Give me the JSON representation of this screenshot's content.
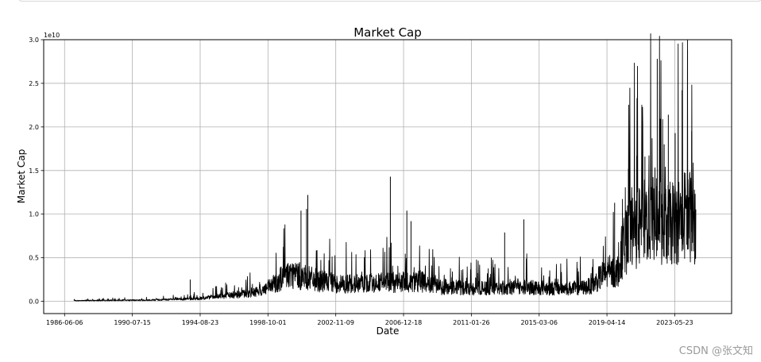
{
  "chart_data": {
    "type": "line",
    "title": "Market Cap",
    "xlabel": "Date",
    "ylabel": "Market Cap",
    "y_offset_text": "1e10",
    "y_scale_factor": 10000000000,
    "ylim": [
      -1400000000,
      30000000000
    ],
    "y_ticks": [
      {
        "value": 0,
        "label": "0.0"
      },
      {
        "value": 5000000000,
        "label": "0.5"
      },
      {
        "value": 10000000000,
        "label": "1.0"
      },
      {
        "value": 15000000000,
        "label": "1.5"
      },
      {
        "value": 20000000000,
        "label": "2.0"
      },
      {
        "value": 25000000000,
        "label": "2.5"
      },
      {
        "value": 30000000000,
        "label": "3.0"
      }
    ],
    "xlim": [
      "1985-03-01",
      "2026-11-01"
    ],
    "x_ticks": [
      "1986-06-06",
      "1990-07-15",
      "1994-08-23",
      "1998-10-01",
      "2002-11-09",
      "2006-12-18",
      "2011-01-26",
      "2015-03-06",
      "2019-04-14",
      "2023-05-23"
    ],
    "grid": true,
    "series": [
      {
        "color": "#000000",
        "points": [
          [
            "1987-01-01",
            80000000
          ],
          [
            "1988-01-01",
            100000000
          ],
          [
            "1989-01-01",
            110000000
          ],
          [
            "1990-01-01",
            130000000
          ],
          [
            "1991-01-01",
            140000000
          ],
          [
            "1992-01-01",
            180000000
          ],
          [
            "1993-01-01",
            220000000
          ],
          [
            "1994-01-01",
            280000000
          ],
          [
            "1995-01-01",
            400000000
          ],
          [
            "1995-10-01",
            550000000
          ],
          [
            "1996-06-01",
            700000000
          ],
          [
            "1997-01-01",
            800000000
          ],
          [
            "1997-10-01",
            1000000000
          ],
          [
            "1998-06-01",
            1300000000
          ],
          [
            "1999-01-01",
            1800000000
          ],
          [
            "1999-07-01",
            2600000000
          ],
          [
            "2000-01-01",
            3200000000
          ],
          [
            "2000-07-01",
            3000000000
          ],
          [
            "2001-01-01",
            2700000000
          ],
          [
            "2002-01-01",
            2300000000
          ],
          [
            "2003-01-01",
            2000000000
          ],
          [
            "2004-01-01",
            2000000000
          ],
          [
            "2005-01-01",
            2100000000
          ],
          [
            "2006-01-01",
            2200000000
          ],
          [
            "2007-01-01",
            2200000000
          ],
          [
            "2008-01-01",
            2300000000
          ],
          [
            "2009-01-01",
            1700000000
          ],
          [
            "2010-01-01",
            1600000000
          ],
          [
            "2011-01-01",
            1500000000
          ],
          [
            "2012-01-01",
            1500000000
          ],
          [
            "2013-01-01",
            1600000000
          ],
          [
            "2014-01-01",
            1700000000
          ],
          [
            "2015-01-01",
            1600000000
          ],
          [
            "2016-01-01",
            1500000000
          ],
          [
            "2017-01-01",
            1500000000
          ],
          [
            "2018-01-01",
            1600000000
          ],
          [
            "2018-07-01",
            2000000000
          ],
          [
            "2019-01-01",
            3000000000
          ],
          [
            "2019-07-01",
            3200000000
          ],
          [
            "2020-01-01",
            3500000000
          ],
          [
            "2020-04-01",
            6000000000
          ],
          [
            "2020-10-01",
            8000000000
          ],
          [
            "2021-04-01",
            8500000000
          ],
          [
            "2021-10-01",
            9500000000
          ],
          [
            "2022-04-01",
            10000000000
          ],
          [
            "2022-10-01",
            8500000000
          ],
          [
            "2023-04-01",
            9000000000
          ],
          [
            "2023-10-01",
            9500000000
          ],
          [
            "2024-04-01",
            10000000000
          ],
          [
            "2024-09-01",
            9000000000
          ]
        ],
        "spikes": [
          [
            "1994-01-15",
            2500000000
          ],
          [
            "2000-10-01",
            10400000000
          ],
          [
            "2001-03-01",
            12200000000
          ],
          [
            "2001-02-01",
            10600000000
          ],
          [
            "2006-03-01",
            14300000000
          ],
          [
            "2007-03-01",
            10400000000
          ],
          [
            "2007-06-01",
            9200000000
          ],
          [
            "2013-02-01",
            7900000000
          ],
          [
            "2014-04-01",
            9400000000
          ],
          [
            "2019-10-01",
            11300000000
          ],
          [
            "2020-08-01",
            15200000000
          ],
          [
            "2021-02-01",
            16700000000
          ],
          [
            "2021-08-01",
            16600000000
          ],
          [
            "2022-05-01",
            27800000000
          ],
          [
            "2022-10-01",
            18000000000
          ],
          [
            "2023-01-01",
            21400000000
          ],
          [
            "2023-06-01",
            19300000000
          ],
          [
            "2023-11-01",
            24200000000
          ],
          [
            "2024-03-01",
            28800000000
          ],
          [
            "2024-06-01",
            19500000000
          ]
        ]
      }
    ]
  },
  "watermark": "CSDN @张文知"
}
